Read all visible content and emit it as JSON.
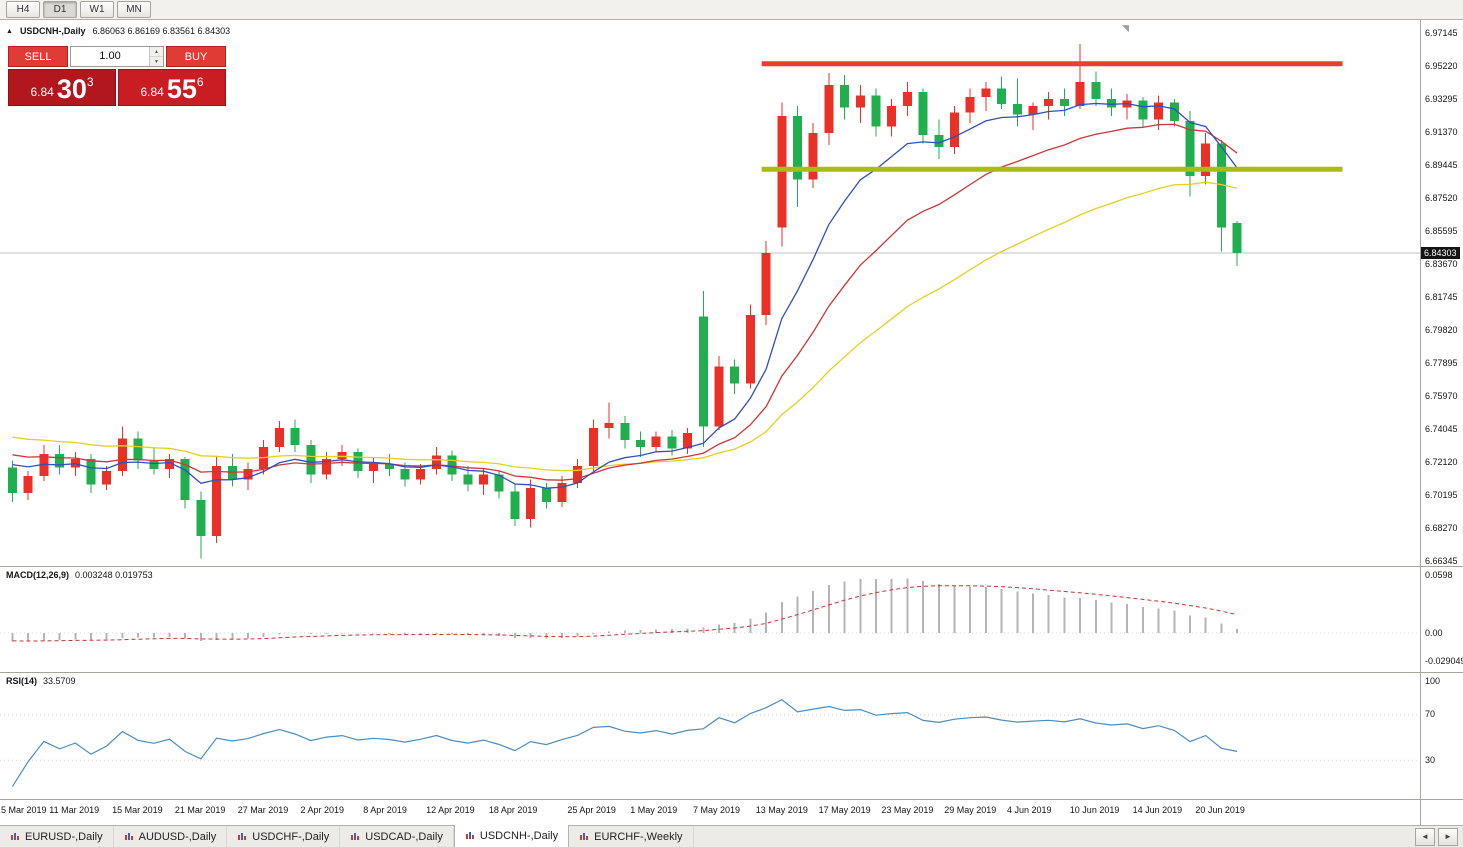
{
  "toolbar": {
    "timeframes": [
      "H4",
      "D1",
      "W1",
      "MN"
    ],
    "active_timeframe": "D1"
  },
  "icons": {
    "symbol_marker": "▲",
    "shift_marker": "◥",
    "spinner_up": "▲",
    "spinner_down": "▼",
    "tab_scroll_left": "◄",
    "tab_scroll_right": "►"
  },
  "chart": {
    "symbol_title": "USDCNH-,Daily",
    "ohlc_text": "6.86063 6.86169 6.83561 6.84303",
    "current_price": "6.84303"
  },
  "trade_panel": {
    "sell_label": "SELL",
    "buy_label": "BUY",
    "volume": "1.00",
    "sell_price": {
      "big": "6.84",
      "pips": "30",
      "pt": "3"
    },
    "buy_price": {
      "big": "6.84",
      "pips": "55",
      "pt": "6"
    }
  },
  "chart_data": {
    "type": "candlestick",
    "symbol": "USDCNH-",
    "timeframe": "Daily",
    "color_convention": "red = up candle, green = down candle",
    "colors": {
      "up": "#ea3127",
      "down": "#21ae4e",
      "ma_fast": "#2f4fc0",
      "ma_mid": "#d23535",
      "ma_slow": "#e8cf1e",
      "resistance": "#f23b30",
      "support": "#a9bd0f",
      "macd_hist": "#b4b4b4",
      "macd_signal": "#cc3333",
      "rsi": "#4a8ec2",
      "price_line": "#c2c2c2"
    },
    "price_axis": [
      "6.97145",
      "6.95220",
      "6.93295",
      "6.91370",
      "6.89445",
      "6.87520",
      "6.85595",
      "6.83670",
      "6.81745",
      "6.79820",
      "6.77895",
      "6.75970",
      "6.74045",
      "6.72120",
      "6.70195",
      "6.68270",
      "6.66345"
    ],
    "candles": [
      [
        6.718,
        6.722,
        6.698,
        6.703
      ],
      [
        6.703,
        6.716,
        6.699,
        6.713
      ],
      [
        6.713,
        6.731,
        6.71,
        6.726
      ],
      [
        6.726,
        6.731,
        6.714,
        6.718
      ],
      [
        6.718,
        6.727,
        6.713,
        6.723
      ],
      [
        6.723,
        6.726,
        6.703,
        6.708
      ],
      [
        6.708,
        6.719,
        6.705,
        6.716
      ],
      [
        6.716,
        6.742,
        6.713,
        6.735
      ],
      [
        6.735,
        6.739,
        6.717,
        6.722
      ],
      [
        6.722,
        6.73,
        6.714,
        6.717
      ],
      [
        6.717,
        6.726,
        6.712,
        6.723
      ],
      [
        6.723,
        6.724,
        6.694,
        6.699
      ],
      [
        6.699,
        6.704,
        6.665,
        6.678
      ],
      [
        6.678,
        6.724,
        6.674,
        6.719
      ],
      [
        6.719,
        6.726,
        6.707,
        6.711
      ],
      [
        6.711,
        6.721,
        6.705,
        6.717
      ],
      [
        6.717,
        6.734,
        6.714,
        6.73
      ],
      [
        6.73,
        6.745,
        6.727,
        6.741
      ],
      [
        6.741,
        6.746,
        6.727,
        6.731
      ],
      [
        6.731,
        6.734,
        6.709,
        6.714
      ],
      [
        6.714,
        6.727,
        6.711,
        6.723
      ],
      [
        6.723,
        6.731,
        6.719,
        6.727
      ],
      [
        6.727,
        6.729,
        6.712,
        6.716
      ],
      [
        6.716,
        6.724,
        6.709,
        6.72
      ],
      [
        6.72,
        6.726,
        6.713,
        6.717
      ],
      [
        6.717,
        6.721,
        6.707,
        6.711
      ],
      [
        6.711,
        6.72,
        6.708,
        6.717
      ],
      [
        6.717,
        6.73,
        6.714,
        6.725
      ],
      [
        6.725,
        6.728,
        6.71,
        6.714
      ],
      [
        6.714,
        6.719,
        6.704,
        6.708
      ],
      [
        6.708,
        6.717,
        6.702,
        6.714
      ],
      [
        6.714,
        6.716,
        6.7,
        6.704
      ],
      [
        6.704,
        6.708,
        6.684,
        6.688
      ],
      [
        6.688,
        6.711,
        6.683,
        6.706
      ],
      [
        6.706,
        6.709,
        6.694,
        6.698
      ],
      [
        6.698,
        6.713,
        6.695,
        6.709
      ],
      [
        6.709,
        6.723,
        6.706,
        6.719
      ],
      [
        6.719,
        6.746,
        6.716,
        6.741
      ],
      [
        6.741,
        6.756,
        6.735,
        6.744
      ],
      [
        6.744,
        6.748,
        6.729,
        6.734
      ],
      [
        6.734,
        6.739,
        6.724,
        6.73
      ],
      [
        6.73,
        6.739,
        6.727,
        6.736
      ],
      [
        6.736,
        6.74,
        6.725,
        6.729
      ],
      [
        6.729,
        6.741,
        6.726,
        6.738
      ],
      [
        6.806,
        6.821,
        6.73,
        6.742
      ],
      [
        6.742,
        6.783,
        6.74,
        6.777
      ],
      [
        6.777,
        6.781,
        6.761,
        6.767
      ],
      [
        6.767,
        6.813,
        6.764,
        6.807
      ],
      [
        6.807,
        6.85,
        6.801,
        6.843
      ],
      [
        6.858,
        6.931,
        6.847,
        6.923
      ],
      [
        6.923,
        6.929,
        6.87,
        6.886
      ],
      [
        6.886,
        6.919,
        6.881,
        6.913
      ],
      [
        6.913,
        6.948,
        6.906,
        6.941
      ],
      [
        6.941,
        6.947,
        6.921,
        6.928
      ],
      [
        6.928,
        6.941,
        6.919,
        6.935
      ],
      [
        6.935,
        6.939,
        6.911,
        6.917
      ],
      [
        6.917,
        6.933,
        6.911,
        6.929
      ],
      [
        6.929,
        6.943,
        6.923,
        6.937
      ],
      [
        6.937,
        6.939,
        6.907,
        6.912
      ],
      [
        6.912,
        6.921,
        6.898,
        6.905
      ],
      [
        6.905,
        6.929,
        6.901,
        6.925
      ],
      [
        6.925,
        6.939,
        6.919,
        6.934
      ],
      [
        6.934,
        6.943,
        6.926,
        6.939
      ],
      [
        6.939,
        6.946,
        6.927,
        6.93
      ],
      [
        6.93,
        6.945,
        6.917,
        6.924
      ],
      [
        6.924,
        6.931,
        6.915,
        6.929
      ],
      [
        6.929,
        6.937,
        6.921,
        6.933
      ],
      [
        6.933,
        6.939,
        6.923,
        6.929
      ],
      [
        6.929,
        6.965,
        6.927,
        6.943
      ],
      [
        6.943,
        6.949,
        6.929,
        6.933
      ],
      [
        6.933,
        6.939,
        6.923,
        6.928
      ],
      [
        6.928,
        6.936,
        6.921,
        6.932
      ],
      [
        6.932,
        6.934,
        6.917,
        6.921
      ],
      [
        6.921,
        6.935,
        6.915,
        6.931
      ],
      [
        6.931,
        6.933,
        6.917,
        6.92
      ],
      [
        6.92,
        6.926,
        6.876,
        6.888
      ],
      [
        6.888,
        6.913,
        6.883,
        6.907
      ],
      [
        6.907,
        6.909,
        6.844,
        6.858
      ],
      [
        6.86063,
        6.86169,
        6.83561,
        6.84303
      ]
    ],
    "date_labels": [
      [
        0,
        "5 Mar 2019"
      ],
      [
        4,
        "11 Mar 2019"
      ],
      [
        8,
        "15 Mar 2019"
      ],
      [
        12,
        "21 Mar 2019"
      ],
      [
        16,
        "27 Mar 2019"
      ],
      [
        20,
        "2 Apr 2019"
      ],
      [
        24,
        "8 Apr 2019"
      ],
      [
        28,
        "12 Apr 2019"
      ],
      [
        32,
        "18 Apr 2019"
      ],
      [
        37,
        "25 Apr 2019"
      ],
      [
        41,
        "1 May 2019"
      ],
      [
        45,
        "7 May 2019"
      ],
      [
        49,
        "13 May 2019"
      ],
      [
        53,
        "17 May 2019"
      ],
      [
        57,
        "23 May 2019"
      ],
      [
        61,
        "29 May 2019"
      ],
      [
        65,
        "4 Jun 2019"
      ],
      [
        69,
        "10 Jun 2019"
      ],
      [
        73,
        "14 Jun 2019"
      ],
      [
        77,
        "20 Jun 2019"
      ]
    ],
    "objects": {
      "resistance_line": {
        "price": 6.9535,
        "start_index": 48,
        "end_index": 85
      },
      "support_line": {
        "price": 6.892,
        "start_index": 48,
        "end_index": 85
      }
    },
    "moving_averages": [
      {
        "name": "fast",
        "period": 9
      },
      {
        "name": "mid",
        "period": 18
      },
      {
        "name": "slow",
        "period": 36
      }
    ],
    "macd": {
      "label": "MACD(12,26,9)",
      "values_text": "0.003248 0.019753",
      "axis": [
        "0.0598",
        "0.00",
        "-0.029049"
      ],
      "scale_top": 0.0598,
      "scale_bottom": -0.0299,
      "fast": 12,
      "slow": 26,
      "signal": 9
    },
    "rsi": {
      "label": "RSI(14)",
      "value_text": "33.5709",
      "axis": [
        "100",
        "70",
        "30"
      ],
      "period": 14,
      "levels": [
        70,
        30
      ]
    }
  },
  "tabs": {
    "items": [
      {
        "label": "EURUSD-,Daily"
      },
      {
        "label": "AUDUSD-,Daily"
      },
      {
        "label": "USDCHF-,Daily"
      },
      {
        "label": "USDCAD-,Daily"
      },
      {
        "label": "USDCNH-,Daily"
      },
      {
        "label": "EURCHF-,Weekly"
      }
    ],
    "active_index": 4
  }
}
